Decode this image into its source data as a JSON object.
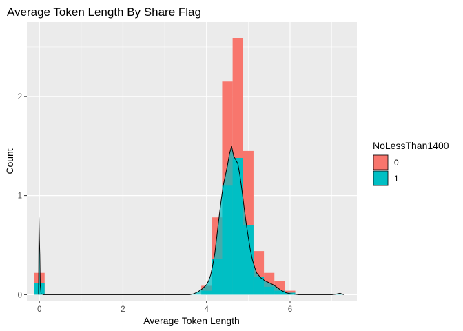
{
  "chart_data": {
    "type": "bar",
    "title": "Average Token Length By Share Flag",
    "xlabel": "Average Token Length",
    "ylabel": "Count",
    "xlim": [
      -0.3,
      7.6
    ],
    "ylim": [
      -0.06,
      2.75
    ],
    "x_ticks": [
      0,
      2,
      4,
      6
    ],
    "x_tick_labels": [
      "0",
      "2",
      "4",
      "6"
    ],
    "y_ticks": [
      0,
      1,
      2
    ],
    "y_tick_labels": [
      "0",
      "1",
      "2"
    ],
    "grid": true,
    "legend": {
      "title": "NoLessThan1400",
      "placement": "right",
      "entries": [
        {
          "label": "0",
          "color": "#f8766d"
        },
        {
          "label": "1",
          "color": "#00bfc4"
        }
      ]
    },
    "bin_width": 0.25,
    "series": [
      {
        "name": "0",
        "color": "#f8766d",
        "bins": [
          {
            "x0": -0.125,
            "x1": 0.125,
            "value": 0.22
          },
          {
            "x0": 3.875,
            "x1": 4.125,
            "value": 0.09
          },
          {
            "x0": 4.125,
            "x1": 4.375,
            "value": 0.78
          },
          {
            "x0": 4.375,
            "x1": 4.625,
            "value": 2.15
          },
          {
            "x0": 4.625,
            "x1": 4.875,
            "value": 2.59
          },
          {
            "x0": 4.875,
            "x1": 5.125,
            "value": 1.45
          },
          {
            "x0": 5.125,
            "x1": 5.375,
            "value": 0.44
          },
          {
            "x0": 5.375,
            "x1": 5.625,
            "value": 0.22
          },
          {
            "x0": 5.625,
            "x1": 5.875,
            "value": 0.14
          },
          {
            "x0": 5.875,
            "x1": 6.125,
            "value": 0.04
          }
        ]
      },
      {
        "name": "1",
        "color": "#00bfc4",
        "bins": [
          {
            "x0": -0.125,
            "x1": 0.125,
            "value": 0.12
          },
          {
            "x0": 3.875,
            "x1": 4.125,
            "value": 0.04
          },
          {
            "x0": 4.125,
            "x1": 4.375,
            "value": 0.36
          },
          {
            "x0": 4.375,
            "x1": 4.625,
            "value": 1.1
          },
          {
            "x0": 4.625,
            "x1": 4.875,
            "value": 1.38
          },
          {
            "x0": 4.875,
            "x1": 5.125,
            "value": 0.7
          },
          {
            "x0": 5.125,
            "x1": 5.375,
            "value": 0.18
          },
          {
            "x0": 5.375,
            "x1": 5.625,
            "value": 0.08
          },
          {
            "x0": 5.625,
            "x1": 5.875,
            "value": 0.04
          },
          {
            "x0": 5.875,
            "x1": 6.125,
            "value": 0.02
          }
        ]
      }
    ],
    "density_curves": [
      {
        "name": "1",
        "fill": "#00bfc4",
        "points": [
          [
            -0.02,
            0
          ],
          [
            -0.01,
            0.78
          ],
          [
            0,
            0.55
          ],
          [
            0.01,
            0.4
          ],
          [
            0.02,
            0.1
          ],
          [
            0.04,
            0.01
          ],
          [
            0.1,
            0
          ],
          [
            3.6,
            0
          ],
          [
            3.7,
            0.01
          ],
          [
            3.8,
            0.03
          ],
          [
            3.9,
            0.06
          ],
          [
            4.0,
            0.1
          ],
          [
            4.05,
            0.14
          ],
          [
            4.1,
            0.2
          ],
          [
            4.15,
            0.3
          ],
          [
            4.2,
            0.42
          ],
          [
            4.25,
            0.6
          ],
          [
            4.3,
            0.78
          ],
          [
            4.35,
            0.95
          ],
          [
            4.4,
            1.1
          ],
          [
            4.45,
            1.2
          ],
          [
            4.5,
            1.3
          ],
          [
            4.55,
            1.42
          ],
          [
            4.6,
            1.5
          ],
          [
            4.65,
            1.4
          ],
          [
            4.7,
            1.36
          ],
          [
            4.75,
            1.32
          ],
          [
            4.8,
            1.2
          ],
          [
            4.85,
            1.05
          ],
          [
            4.9,
            0.88
          ],
          [
            4.95,
            0.72
          ],
          [
            5.0,
            0.58
          ],
          [
            5.05,
            0.45
          ],
          [
            5.1,
            0.35
          ],
          [
            5.15,
            0.28
          ],
          [
            5.2,
            0.22
          ],
          [
            5.3,
            0.17
          ],
          [
            5.4,
            0.14
          ],
          [
            5.5,
            0.12
          ],
          [
            5.6,
            0.1
          ],
          [
            5.7,
            0.07
          ],
          [
            5.8,
            0.04
          ],
          [
            5.9,
            0.02
          ],
          [
            6.0,
            0.01
          ],
          [
            6.2,
            0
          ],
          [
            7.0,
            0
          ],
          [
            7.1,
            0.005
          ],
          [
            7.2,
            0.015
          ],
          [
            7.25,
            0.005
          ],
          [
            7.3,
            0
          ]
        ]
      }
    ]
  }
}
